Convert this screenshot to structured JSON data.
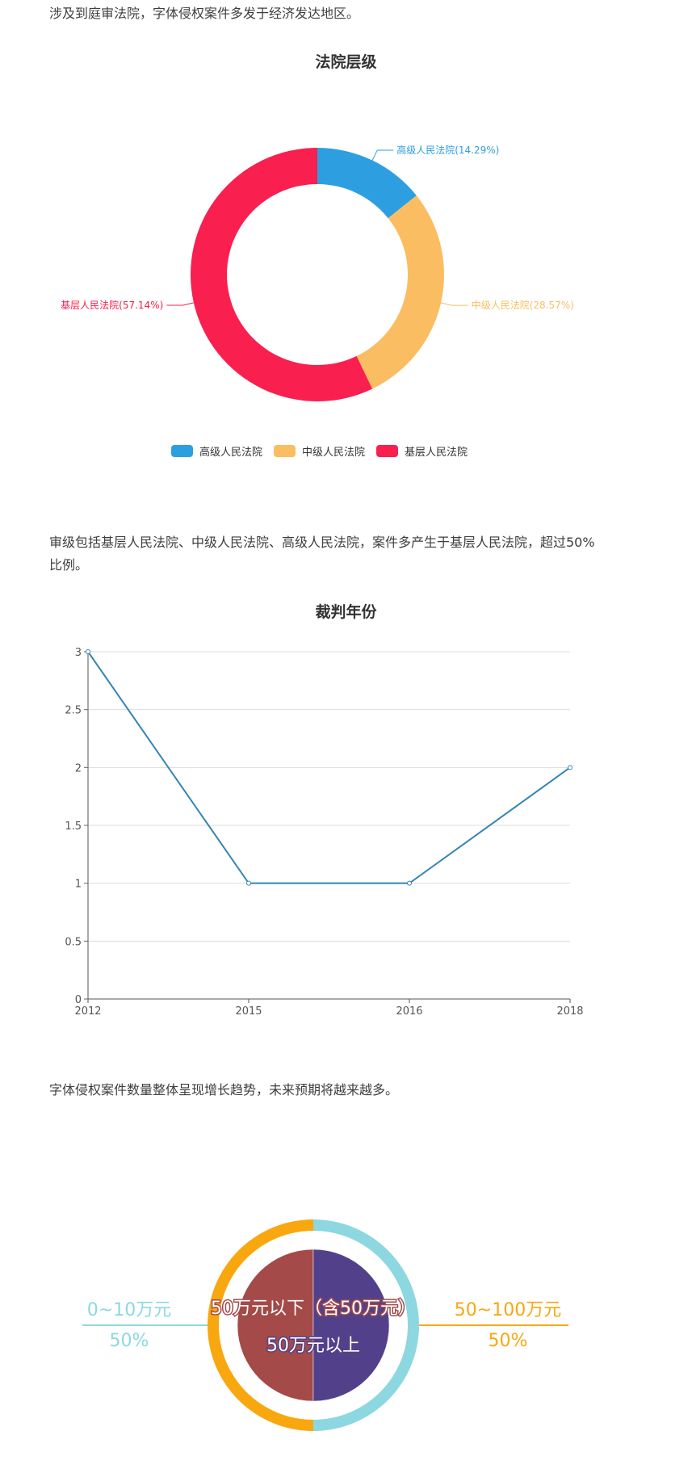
{
  "paragraphs": [
    "涉及到庭审法院，字体侵权案件多发于经济发达地区。",
    "审级包括基层人民法院、中级人民法院、高级人民法院，案件多产生于基层人民法院，超过50%比例。",
    "字体侵权案件数量整体呈现增长趋势，未来预期将越来越多。"
  ],
  "chart_data": [
    {
      "type": "pie",
      "variant": "donut",
      "title": "法院层级",
      "legend_position": "bottom",
      "slices": [
        {
          "name": "高级人民法院",
          "value": 14.29,
          "label": "高级人民法院(14.29%)",
          "color": "#2d9fe0"
        },
        {
          "name": "中级人民法院",
          "value": 28.57,
          "label": "中级人民法院(28.57%)",
          "color": "#fbbd62"
        },
        {
          "name": "基层人民法院",
          "value": 57.14,
          "label": "基层人民法院(57.14%)",
          "color": "#f91f4e"
        }
      ]
    },
    {
      "type": "line",
      "title": "裁判年份",
      "categories": [
        "2012",
        "2015",
        "2016",
        "2018"
      ],
      "values": [
        3,
        1,
        1,
        2
      ],
      "ylim": [
        0,
        3
      ],
      "yticks": [
        "0",
        "0.5",
        "1",
        "1.5",
        "2",
        "2.5",
        "3"
      ],
      "grid": true,
      "color": "#3285b4"
    },
    {
      "type": "pie",
      "variant": "nested",
      "outer": [
        {
          "name": "0~10万元",
          "value": 50,
          "label": "50%",
          "color": "#8dd8e0"
        },
        {
          "name": "50~100万元",
          "value": 50,
          "label": "50%",
          "color": "#f9a70f"
        }
      ],
      "inner": [
        {
          "name": "50万元以下（含50万元）",
          "value": 50,
          "color": "#a44a49"
        },
        {
          "name": "50万元以上",
          "value": 50,
          "color": "#52418a"
        }
      ]
    }
  ]
}
